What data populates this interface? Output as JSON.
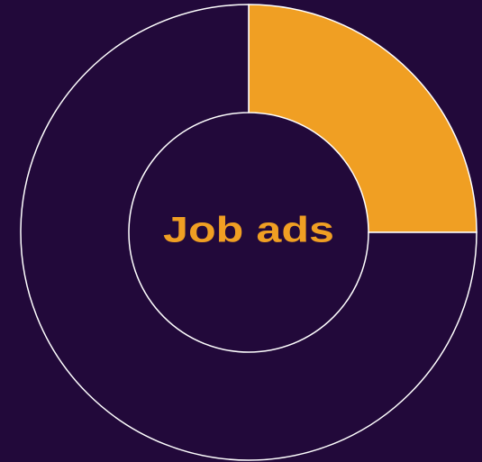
{
  "chart_data": {
    "type": "pie",
    "donut": true,
    "center_label": "Job ads",
    "categories": [
      null,
      null
    ],
    "values": [
      25,
      75
    ],
    "colors": [
      "#f09f23",
      "#22093a"
    ],
    "edge_color": "#ffffff",
    "background": "#22093a",
    "label_color": "#f09f23"
  }
}
